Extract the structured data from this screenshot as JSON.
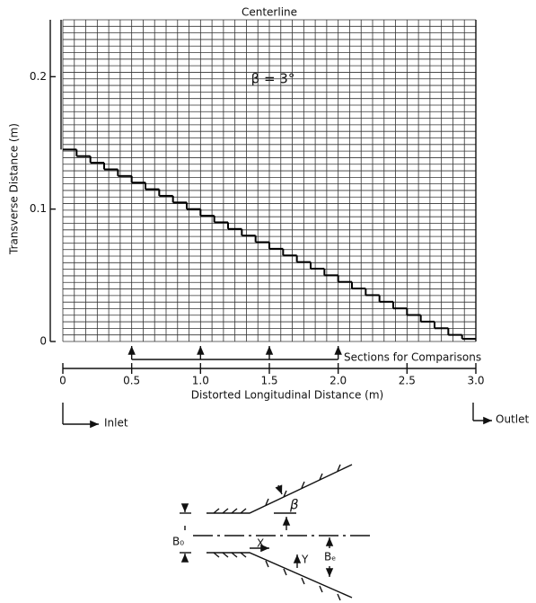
{
  "chart_data": {
    "type": "line",
    "title": "Centerline",
    "annotation": "β = 3°",
    "ylabel": "Transverse Distance (m)",
    "xlabel": "Distorted Longitudinal Distance (m)",
    "sections_label": "Sections for Comparisons",
    "sections": [
      0.5,
      1.0,
      1.5,
      2.0
    ],
    "inlet_label": "Inlet",
    "outlet_label": "Outlet",
    "x": [
      0,
      0.1,
      0.2,
      0.3,
      0.4,
      0.5,
      0.6,
      0.7,
      0.8,
      0.9,
      1.0,
      1.1,
      1.2,
      1.3,
      1.4,
      1.5,
      1.6,
      1.7,
      1.8,
      1.9,
      2.0,
      2.1,
      2.2,
      2.3,
      2.4,
      2.5,
      2.6,
      2.7,
      2.8,
      2.9
    ],
    "step_width": 0.1,
    "values": [
      0.145,
      0.14,
      0.135,
      0.13,
      0.125,
      0.12,
      0.115,
      0.11,
      0.105,
      0.1,
      0.095,
      0.09,
      0.085,
      0.08,
      0.075,
      0.07,
      0.065,
      0.06,
      0.055,
      0.05,
      0.045,
      0.04,
      0.035,
      0.03,
      0.025,
      0.02,
      0.015,
      0.01,
      0.005,
      0.002
    ],
    "color": "#000000",
    "xlim": [
      0,
      3.0
    ],
    "ylim": [
      0,
      0.243
    ],
    "xticks": [
      0,
      0.5,
      {
        "value": 1.0,
        "label": "1.0"
      },
      1.5,
      {
        "value": 2.0,
        "label": "2.0"
      },
      2.5,
      {
        "value": 3.0,
        "label": "3.0"
      }
    ],
    "yticks": [
      0,
      0.1,
      0.2
    ],
    "grid": true
  },
  "sketch": {
    "angle_label": "β",
    "inlet_width": "B₀",
    "x_axis": "X",
    "y_axis": "Y",
    "exit_width": "Bₑ"
  }
}
